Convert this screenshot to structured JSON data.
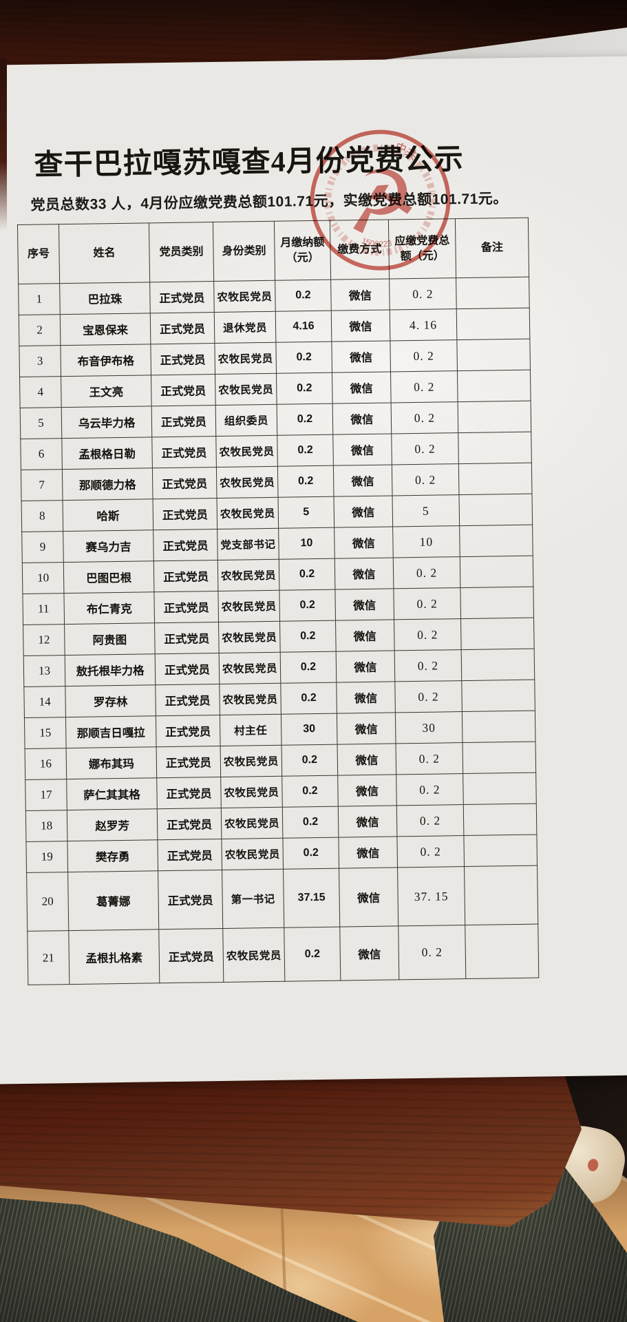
{
  "scene": {
    "description": "photograph of a printed party-fee notice lying on a dark red wooden desk; beige tiled floor and the photographer's trouser legs and shoe visible below the desk edge",
    "colors": {
      "desk_wood": "#53220f",
      "paper": "#eae8e4",
      "floor_tile": "#d8a56b",
      "trousers": "#3f4237",
      "stamp_red": "#c23a2e",
      "print_black": "#15130f"
    }
  },
  "document": {
    "title": "查干巴拉嘎苏嘎查4月份党费公示",
    "summary": "党员总数33 人，4月份应缴党费总额101.71元，实缴党费总额101.71元。",
    "stamp": {
      "emblem": "hammer-and-sickle",
      "ring_text_visible": "中共",
      "serial_visible": "1506223"
    },
    "table": {
      "headers": [
        "序号",
        "姓名",
        "党员类别",
        "身份类别",
        "月缴纳额（元）",
        "缴费方式",
        "应缴党费总额（元）",
        "备注"
      ],
      "rows": [
        [
          "1",
          "巴拉珠",
          "正式党员",
          "农牧民党员",
          "0.2",
          "微信",
          "0. 2",
          ""
        ],
        [
          "2",
          "宝恩保来",
          "正式党员",
          "退休党员",
          "4.16",
          "微信",
          "4. 16",
          ""
        ],
        [
          "3",
          "布音伊布格",
          "正式党员",
          "农牧民党员",
          "0.2",
          "微信",
          "0. 2",
          ""
        ],
        [
          "4",
          "王文亮",
          "正式党员",
          "农牧民党员",
          "0.2",
          "微信",
          "0. 2",
          ""
        ],
        [
          "5",
          "乌云毕力格",
          "正式党员",
          "组织委员",
          "0.2",
          "微信",
          "0. 2",
          ""
        ],
        [
          "6",
          "孟根格日勒",
          "正式党员",
          "农牧民党员",
          "0.2",
          "微信",
          "0. 2",
          ""
        ],
        [
          "7",
          "那顺德力格",
          "正式党员",
          "农牧民党员",
          "0.2",
          "微信",
          "0. 2",
          ""
        ],
        [
          "8",
          "哈斯",
          "正式党员",
          "农牧民党员",
          "5",
          "微信",
          "5",
          ""
        ],
        [
          "9",
          "赛乌力吉",
          "正式党员",
          "党支部书记",
          "10",
          "微信",
          "10",
          ""
        ],
        [
          "10",
          "巴图巴根",
          "正式党员",
          "农牧民党员",
          "0.2",
          "微信",
          "0. 2",
          ""
        ],
        [
          "11",
          "布仁青克",
          "正式党员",
          "农牧民党员",
          "0.2",
          "微信",
          "0. 2",
          ""
        ],
        [
          "12",
          "阿贵图",
          "正式党员",
          "农牧民党员",
          "0.2",
          "微信",
          "0. 2",
          ""
        ],
        [
          "13",
          "敖托根毕力格",
          "正式党员",
          "农牧民党员",
          "0.2",
          "微信",
          "0. 2",
          ""
        ],
        [
          "14",
          "罗存林",
          "正式党员",
          "农牧民党员",
          "0.2",
          "微信",
          "0. 2",
          ""
        ],
        [
          "15",
          "那顺吉日嘎拉",
          "正式党员",
          "村主任",
          "30",
          "微信",
          "30",
          ""
        ],
        [
          "16",
          "娜布其玛",
          "正式党员",
          "农牧民党员",
          "0.2",
          "微信",
          "0. 2",
          ""
        ],
        [
          "17",
          "萨仁其其格",
          "正式党员",
          "农牧民党员",
          "0.2",
          "微信",
          "0. 2",
          ""
        ],
        [
          "18",
          "赵罗芳",
          "正式党员",
          "农牧民党员",
          "0.2",
          "微信",
          "0. 2",
          ""
        ],
        [
          "19",
          "樊存勇",
          "正式党员",
          "农牧民党员",
          "0.2",
          "微信",
          "0. 2",
          ""
        ],
        [
          "20",
          "葛菁娜",
          "正式党员",
          "第一书记",
          "37.15",
          "微信",
          "37. 15",
          ""
        ],
        [
          "21",
          "孟根扎格素",
          "正式党员",
          "农牧民党员",
          "0.2",
          "微信",
          "0. 2",
          ""
        ]
      ]
    }
  }
}
